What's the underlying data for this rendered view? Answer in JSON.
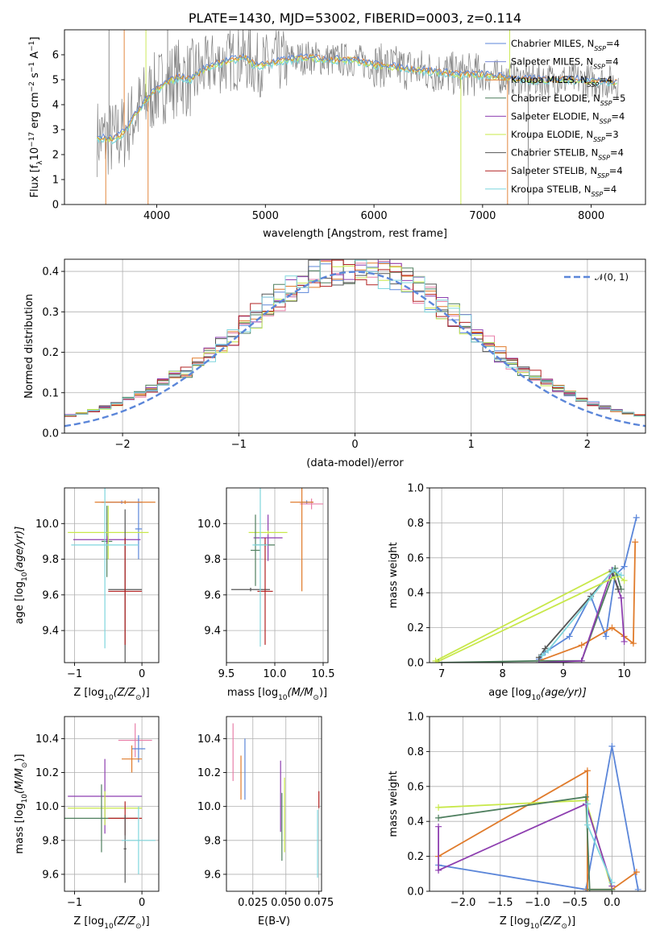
{
  "title": "PLATE=1430, MJD=53002, FIBERID=0003, z=0.114",
  "colors": {
    "chabrier_miles": "#5b86d9",
    "salpeter_miles": "#7b8bd6",
    "kroupa_miles": "#e07b2b",
    "chabrier_elodie": "#4f7f5f",
    "salpeter_elodie": "#8e3fb0",
    "kroupa_elodie": "#c8e84a",
    "chabrier_stelib": "#555555",
    "salpeter_stelib": "#b22222",
    "kroupa_stelib": "#7fd6dd",
    "pink": "#e87fa8",
    "gauss": "#5b86d9",
    "data": "#808080"
  },
  "chart_data": [
    {
      "id": "spectrum",
      "type": "line",
      "title": "PLATE=1430, MJD=53002, FIBERID=0003, z=0.114",
      "xlabel": "wavelength [Angstrom, rest frame]",
      "ylabel": "Flux [f",
      "ylabel_sub": "λ",
      "ylabel_mid": "10",
      "ylabel_sup1": "−17",
      "ylabel_rest": " erg cm",
      "ylabel_sup2": "−2",
      "ylabel_rest2": " s",
      "ylabel_sup3": "−1",
      "ylabel_rest3": " A",
      "ylabel_sup4": "−1",
      "ylabel_end": "]",
      "xlim": [
        3150,
        8500
      ],
      "ylim": [
        0,
        7
      ],
      "xticks": [
        "4000",
        "5000",
        "6000",
        "7000",
        "8000"
      ],
      "yticks": [
        "0",
        "1",
        "2",
        "3",
        "4",
        "5",
        "6"
      ],
      "legend": [
        {
          "label": "Chabrier MILES, N",
          "sub": "SSP",
          "tail": "=4"
        },
        {
          "label": "Salpeter MILES, N",
          "sub": "SSP",
          "tail": "=4"
        },
        {
          "label": "Kroupa MILES, N",
          "sub": "SSP",
          "tail": "=4"
        },
        {
          "label": "Chabrier ELODIE, N",
          "sub": "SSP",
          "tail": "=5"
        },
        {
          "label": "Salpeter ELODIE, N",
          "sub": "SSP",
          "tail": "=4"
        },
        {
          "label": "Kroupa ELODIE, N",
          "sub": "SSP",
          "tail": "=3"
        },
        {
          "label": "Chabrier STELIB, N",
          "sub": "SSP",
          "tail": "=4"
        },
        {
          "label": "Salpeter STELIB, N",
          "sub": "SSP",
          "tail": "=4"
        },
        {
          "label": "Kroupa STELIB, N",
          "sub": "SSP",
          "tail": "=4"
        }
      ],
      "continuum": {
        "x": [
          3450,
          3600,
          3700,
          3800,
          3900,
          4000,
          4100,
          4200,
          4300,
          4400,
          4500,
          4600,
          4700,
          4800,
          4900,
          5000,
          5200,
          5400,
          5600,
          5800,
          6000,
          6200,
          6400,
          6600,
          6800,
          7000,
          7200,
          7400,
          7600,
          7800,
          8000,
          8200,
          8250
        ],
        "y": [
          2.7,
          2.6,
          2.9,
          3.6,
          4.2,
          4.6,
          4.9,
          5.1,
          5.0,
          5.3,
          5.6,
          5.7,
          5.8,
          5.9,
          5.6,
          5.6,
          5.8,
          5.9,
          5.8,
          5.8,
          5.6,
          5.5,
          5.4,
          5.3,
          5.2,
          5.2,
          5.1,
          5.0,
          5.0,
          5.0,
          4.95,
          4.9,
          4.9
        ]
      }
    },
    {
      "id": "residuals",
      "type": "bar",
      "xlabel": "(data-model)/error",
      "ylabel": "Normed distribution",
      "xlim": [
        -2.5,
        2.5
      ],
      "ylim": [
        0,
        0.43
      ],
      "xticks": [
        "−2",
        "−1",
        "0",
        "1",
        "2"
      ],
      "yticks": [
        "0.0",
        "0.1",
        "0.2",
        "0.3",
        "0.4"
      ],
      "legend": [
        {
          "label": "𝒩(0, 1)"
        }
      ],
      "gaussian": {
        "mean": 0,
        "sigma": 1
      },
      "bin_width": 0.1
    },
    {
      "id": "age_vs_Z",
      "type": "scatter",
      "xlabel": "Z [log",
      "xlabel_sub": "10",
      "xlabel_tail": "(Z/Z",
      "xlabel_end": ")]",
      "ylabel": "age  [log",
      "ylabel_sub": "10",
      "ylabel_tail": "(age/yr)]",
      "xlim": [
        -1.15,
        0.25
      ],
      "ylim": [
        9.22,
        10.2
      ],
      "xticks": [
        "−1",
        "0"
      ],
      "yticks": [
        "9.4",
        "9.6",
        "9.8",
        "10.0"
      ],
      "points": [
        {
          "x": -0.05,
          "y": 9.97,
          "xerr": 0.05,
          "yerr": 0.17,
          "c": "chabrier_miles"
        },
        {
          "x": -0.3,
          "y": 10.12,
          "xerr": 0.3,
          "yerr": 0.01,
          "c": "salpeter_miles"
        },
        {
          "x": -0.25,
          "y": 10.12,
          "xerr": 0.45,
          "yerr": 0.01,
          "c": "kroupa_miles"
        },
        {
          "x": -0.52,
          "y": 9.9,
          "xerr": 0.08,
          "yerr": 0.2,
          "c": "chabrier_elodie"
        },
        {
          "x": -0.52,
          "y": 9.91,
          "xerr": 0.5,
          "yerr": 0.02,
          "c": "salpeter_elodie"
        },
        {
          "x": -0.5,
          "y": 9.95,
          "xerr": 0.6,
          "yerr": 0.15,
          "c": "kroupa_elodie"
        },
        {
          "x": -0.25,
          "y": 9.63,
          "xerr": 0.25,
          "yerr": 0.45,
          "c": "chabrier_stelib"
        },
        {
          "x": -0.25,
          "y": 9.62,
          "xerr": 0.25,
          "yerr": 0.3,
          "c": "salpeter_stelib"
        },
        {
          "x": -0.55,
          "y": 9.88,
          "xerr": 0.5,
          "yerr": 0.58,
          "c": "kroupa_stelib"
        }
      ]
    },
    {
      "id": "age_vs_mass",
      "type": "scatter",
      "xlabel": "mass [log",
      "xlabel_sub": "10",
      "xlabel_tail": "(M/M",
      "xlabel_end": ")]",
      "xlim": [
        9.5,
        10.55
      ],
      "ylim": [
        9.22,
        10.2
      ],
      "xticks": [
        "9.5",
        "10.0",
        "10.5"
      ],
      "yticks": [
        "9.4",
        "9.6",
        "9.8",
        "10.0"
      ],
      "points": [
        {
          "x": 10.33,
          "y": 10.12,
          "xerr": 0.07,
          "yerr": 0.01,
          "c": "chabrier_miles"
        },
        {
          "x": 10.38,
          "y": 10.11,
          "xerr": 0.12,
          "yerr": 0.03,
          "c": "pink"
        },
        {
          "x": 10.28,
          "y": 10.12,
          "xerr": 0.12,
          "yerr": 0.5,
          "c": "kroupa_miles"
        },
        {
          "x": 9.93,
          "y": 9.92,
          "xerr": 0.15,
          "yerr": 0.13,
          "c": "salpeter_elodie"
        },
        {
          "x": 9.93,
          "y": 9.95,
          "xerr": 0.2,
          "yerr": 0.01,
          "c": "kroupa_elodie"
        },
        {
          "x": 9.8,
          "y": 9.85,
          "xerr": 0.05,
          "yerr": 0.2,
          "c": "chabrier_elodie"
        },
        {
          "x": 9.9,
          "y": 9.88,
          "xerr": 0.1,
          "yerr": 0.01,
          "c": "chabrier_elodie"
        },
        {
          "x": 9.75,
          "y": 9.63,
          "xerr": 0.2,
          "yerr": 0.01,
          "c": "chabrier_stelib"
        },
        {
          "x": 9.9,
          "y": 9.62,
          "xerr": 0.08,
          "yerr": 0.3,
          "c": "salpeter_stelib"
        },
        {
          "x": 9.85,
          "y": 9.88,
          "xerr": 0.08,
          "yerr": 0.57,
          "c": "kroupa_stelib"
        }
      ]
    },
    {
      "id": "mass_weight_vs_age",
      "type": "line",
      "xlabel": "age  [log",
      "xlabel_sub": "10",
      "xlabel_tail": "(age/yr)]",
      "ylabel": "mass weight",
      "xlim": [
        6.8,
        10.35
      ],
      "ylim": [
        0,
        1
      ],
      "xticks": [
        "7",
        "8",
        "9",
        "10"
      ],
      "yticks": [
        "0.0",
        "0.2",
        "0.4",
        "0.6",
        "0.8",
        "1.0"
      ],
      "series": [
        {
          "c": "chabrier_miles",
          "x": [
            8.6,
            8.7,
            9.1,
            9.45,
            9.7,
            9.85,
            10.0,
            10.2
          ],
          "y": [
            0.02,
            0.06,
            0.15,
            0.38,
            0.15,
            0.5,
            0.55,
            0.83
          ]
        },
        {
          "c": "kroupa_miles",
          "x": [
            8.6,
            9.3,
            9.8,
            10.0,
            10.15,
            10.18
          ],
          "y": [
            0.01,
            0.1,
            0.2,
            0.15,
            0.11,
            0.69
          ]
        },
        {
          "c": "kroupa_elodie",
          "x": [
            6.9,
            9.8,
            10.0
          ],
          "y": [
            0.01,
            0.53,
            0.47
          ]
        },
        {
          "c": "chabrier_elodie",
          "x": [
            6.95,
            8.6,
            9.3,
            9.85,
            9.95
          ],
          "y": [
            0.0,
            0.01,
            0.01,
            0.54,
            0.42
          ]
        },
        {
          "c": "salpeter_elodie",
          "x": [
            8.6,
            9.3,
            9.8,
            9.95,
            10.0
          ],
          "y": [
            0.0,
            0.01,
            0.53,
            0.37,
            0.12
          ]
        },
        {
          "c": "chabrier_stelib",
          "x": [
            8.6,
            8.7,
            9.45,
            9.8,
            9.9
          ],
          "y": [
            0.03,
            0.08,
            0.38,
            0.52,
            0.42
          ]
        },
        {
          "c": "kroupa_stelib",
          "x": [
            8.65,
            8.75,
            9.45,
            9.82,
            9.95
          ],
          "y": [
            0.04,
            0.07,
            0.37,
            0.53,
            0.5
          ]
        },
        {
          "c": "kroupa_elodie",
          "x": [
            6.9,
            9.85
          ],
          "y": [
            0.0,
            0.49
          ]
        }
      ]
    },
    {
      "id": "mass_vs_Z",
      "type": "scatter",
      "xlabel": "Z [log",
      "xlabel_sub": "10",
      "xlabel_tail": "(Z/Z",
      "xlabel_end": ")]",
      "ylabel": "mass [log",
      "ylabel_sub": "10",
      "ylabel_tail": "(M/M",
      "ylabel_end": ")]",
      "xlim": [
        -1.15,
        0.25
      ],
      "ylim": [
        9.5,
        10.53
      ],
      "xticks": [
        "−1",
        "0"
      ],
      "yticks": [
        "9.6",
        "9.8",
        "10.0",
        "10.2",
        "10.4"
      ],
      "points": [
        {
          "x": -0.1,
          "y": 10.39,
          "xerr": 0.25,
          "yerr": 0.1,
          "c": "pink"
        },
        {
          "x": -0.05,
          "y": 10.34,
          "xerr": 0.1,
          "yerr": 0.08,
          "c": "chabrier_miles"
        },
        {
          "x": -0.15,
          "y": 10.28,
          "xerr": 0.15,
          "yerr": 0.08,
          "c": "kroupa_miles"
        },
        {
          "x": -0.55,
          "y": 10.06,
          "xerr": 0.55,
          "yerr": 0.22,
          "c": "salpeter_elodie"
        },
        {
          "x": -0.55,
          "y": 9.99,
          "xerr": 0.55,
          "yerr": 0.1,
          "c": "kroupa_elodie"
        },
        {
          "x": -0.6,
          "y": 9.93,
          "xerr": 0.55,
          "yerr": 0.2,
          "c": "chabrier_elodie"
        },
        {
          "x": -0.25,
          "y": 9.93,
          "xerr": 0.25,
          "yerr": 0.1,
          "c": "salpeter_stelib"
        },
        {
          "x": -0.25,
          "y": 9.75,
          "xerr": 0.02,
          "yerr": 0.2,
          "c": "chabrier_stelib"
        },
        {
          "x": -0.05,
          "y": 9.8,
          "xerr": 0.25,
          "yerr": 0.2,
          "c": "kroupa_stelib"
        }
      ]
    },
    {
      "id": "mass_vs_ebv",
      "type": "scatter",
      "xlabel": "E(B-V)",
      "xlim": [
        0.005,
        0.077
      ],
      "ylim": [
        9.5,
        10.53
      ],
      "xticks": [
        "0.025",
        "0.050",
        "0.075"
      ],
      "yticks": [
        "9.6",
        "9.8",
        "10.0",
        "10.2",
        "10.4"
      ],
      "points": [
        {
          "x": 0.01,
          "y": 10.32,
          "xerr": 0.0,
          "yerr": 0.17,
          "c": "pink"
        },
        {
          "x": 0.019,
          "y": 10.22,
          "xerr": 0.0,
          "yerr": 0.18,
          "c": "chabrier_miles"
        },
        {
          "x": 0.016,
          "y": 10.17,
          "xerr": 0.0,
          "yerr": 0.13,
          "c": "kroupa_miles"
        },
        {
          "x": 0.046,
          "y": 10.06,
          "xerr": 0.0,
          "yerr": 0.21,
          "c": "salpeter_elodie"
        },
        {
          "x": 0.049,
          "y": 9.95,
          "xerr": 0.0,
          "yerr": 0.22,
          "c": "kroupa_elodie"
        },
        {
          "x": 0.047,
          "y": 9.88,
          "xerr": 0.0,
          "yerr": 0.2,
          "c": "chabrier_elodie"
        },
        {
          "x": 0.075,
          "y": 10.04,
          "xerr": 0.0,
          "yerr": 0.05,
          "c": "salpeter_stelib"
        },
        {
          "x": 0.074,
          "y": 9.78,
          "xerr": 0.0,
          "yerr": 0.2,
          "c": "kroupa_stelib"
        }
      ]
    },
    {
      "id": "mass_weight_vs_Z",
      "type": "line",
      "xlabel": "Z [log",
      "xlabel_sub": "10",
      "xlabel_tail": "(Z/Z",
      "xlabel_end": ")]",
      "ylabel": "mass weight",
      "xlim": [
        -2.45,
        0.45
      ],
      "ylim": [
        0,
        1
      ],
      "xticks": [
        "−2.0",
        "−1.5",
        "−1.0",
        "−0.5",
        "0.0"
      ],
      "yticks": [
        "0.0",
        "0.2",
        "0.4",
        "0.6",
        "0.8",
        "1.0"
      ],
      "series": [
        {
          "c": "chabrier_miles",
          "x": [
            -2.33,
            -0.35,
            0.0,
            0.35
          ],
          "y": [
            0.15,
            0.01,
            0.83,
            0.01
          ]
        },
        {
          "c": "kroupa_miles",
          "x": [
            -2.33,
            -0.33,
            -0.33,
            0.0,
            0.33
          ],
          "y": [
            0.2,
            0.69,
            0.01,
            0.01,
            0.11
          ]
        },
        {
          "c": "kroupa_elodie",
          "x": [
            -2.33,
            -0.35,
            0.0
          ],
          "y": [
            0.48,
            0.52,
            0.01
          ]
        },
        {
          "c": "chabrier_elodie",
          "x": [
            -2.33,
            -0.35,
            -0.3,
            0.0
          ],
          "y": [
            0.42,
            0.54,
            0.01,
            0.01
          ]
        },
        {
          "c": "salpeter_elodie",
          "x": [
            -2.33,
            -2.33,
            -0.35,
            0.0
          ],
          "y": [
            0.37,
            0.12,
            0.5,
            0.03
          ]
        },
        {
          "c": "kroupa_stelib",
          "x": [
            -0.33,
            -0.33,
            0.0
          ],
          "y": [
            0.5,
            0.38,
            0.05
          ]
        }
      ]
    }
  ]
}
